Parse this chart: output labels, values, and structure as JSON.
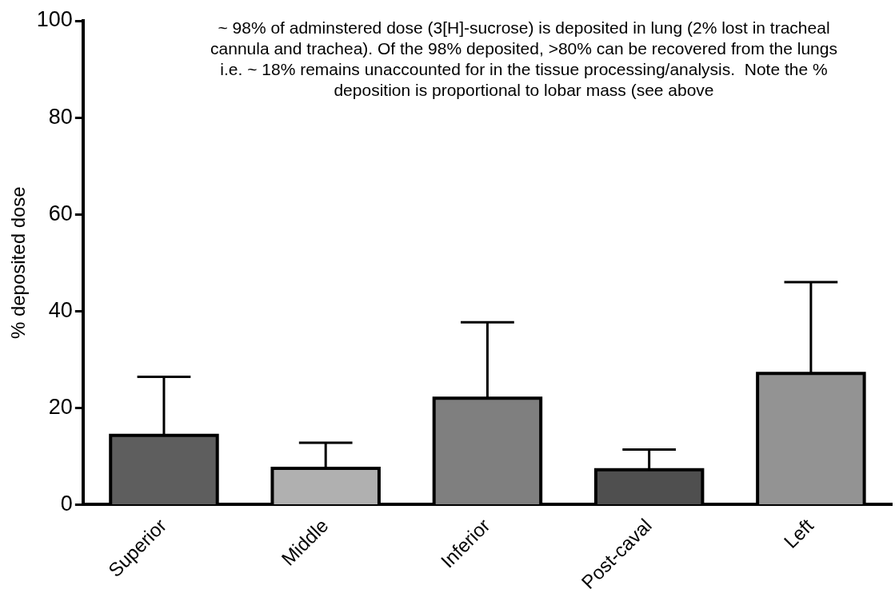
{
  "chart_data": {
    "type": "bar",
    "ylabel": "% deposited dose",
    "categories": [
      "Superior",
      "Middle",
      "Inferior",
      "Post-caval",
      "Left"
    ],
    "values": [
      14.3,
      7.5,
      22.0,
      7.2,
      27.1
    ],
    "colors": [
      "#5e5e5e",
      "#b0b0b0",
      "#7f7f7f",
      "#4f4f4f",
      "#939393"
    ],
    "errors": [
      [
        14.3,
        26.4
      ],
      [
        7.5,
        12.8
      ],
      [
        22.0,
        37.7
      ],
      [
        7.2,
        11.4
      ],
      [
        27.1,
        46.0
      ]
    ],
    "ylim": [
      0,
      100
    ],
    "yticks": [
      0,
      20,
      40,
      60,
      80,
      100
    ],
    "grid": false,
    "legend": false,
    "annotations": [
      "~ 98% of adminstered dose (3[H]-sucrose) is deposited in lung (2% lost in tracheal cannula and trachea). Of the 98% deposited, >80% can be recovered from the lungs i.e. ~ 18% remains unaccounted for in the tissue processing/analysis.  Note the % deposition is proportional to lobar mass (see above"
    ]
  }
}
